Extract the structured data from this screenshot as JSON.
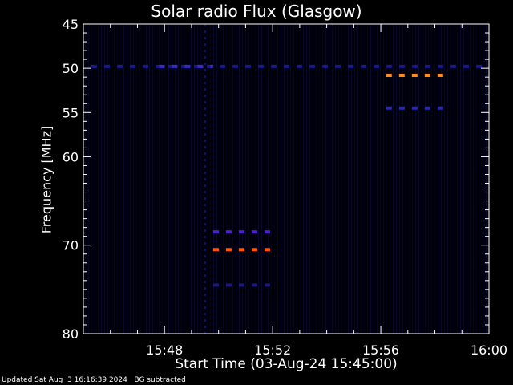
{
  "title": "Solar radio Flux (Glasgow)",
  "footer": "Updated Sat Aug  3 16:16:39 2024   BG subtracted",
  "chart_data": {
    "type": "heatmap",
    "title": "Solar radio Flux (Glasgow)",
    "xlabel": "Start Time (03-Aug-24 15:45:00)",
    "ylabel": "Frequency [MHz]",
    "xlim_minutes": [
      0,
      15
    ],
    "ylim": [
      45,
      80
    ],
    "x_ticks": [
      {
        "minute": 3,
        "label": "15:48"
      },
      {
        "minute": 7,
        "label": "15:52"
      },
      {
        "minute": 11,
        "label": "15:56"
      },
      {
        "minute": 15,
        "label": "16:00"
      }
    ],
    "y_ticks": [
      {
        "value": 45,
        "label": "45"
      },
      {
        "value": 50,
        "label": "50"
      },
      {
        "value": 55,
        "label": "55"
      },
      {
        "value": 60,
        "label": "60"
      },
      {
        "value": 70,
        "label": "70"
      },
      {
        "value": 80,
        "label": "80"
      }
    ],
    "features": [
      {
        "kind": "dashed",
        "freq": 49.8,
        "x_start": 0.3,
        "x_end": 15,
        "color": "#1a1a8a"
      },
      {
        "kind": "dashed",
        "freq": 49.8,
        "x_start": 2.8,
        "x_end": 4.8,
        "color": "#3a2acc"
      },
      {
        "kind": "dashed",
        "freq": 50.8,
        "x_start": 11.2,
        "x_end": 13.5,
        "color": "#ff8c1a"
      },
      {
        "kind": "dashed",
        "freq": 54.5,
        "x_start": 11.2,
        "x_end": 13.5,
        "color": "#2a2aaa"
      },
      {
        "kind": "dashed",
        "freq": 68.5,
        "x_start": 4.8,
        "x_end": 7.0,
        "color": "#4a22cc"
      },
      {
        "kind": "dashed",
        "freq": 70.5,
        "x_start": 4.8,
        "x_end": 7.0,
        "color": "#ff5a10"
      },
      {
        "kind": "dashed",
        "freq": 74.5,
        "x_start": 4.8,
        "x_end": 7.0,
        "color": "#1a1a7a"
      },
      {
        "kind": "vertical",
        "time": 4.5,
        "f_start": 45,
        "f_end": 80,
        "color": "#14146a"
      }
    ]
  }
}
